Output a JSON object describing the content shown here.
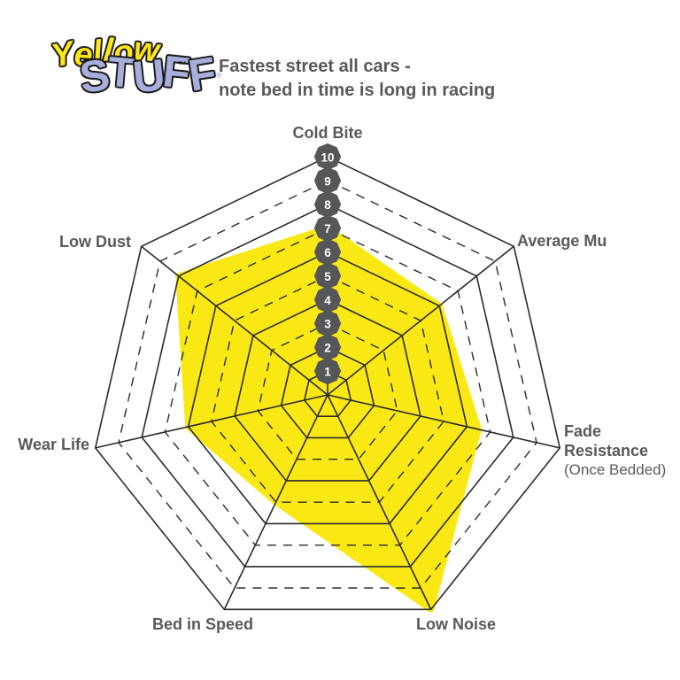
{
  "logo": {
    "word1": "Yellow",
    "word1_mark": "™",
    "word2": "STUFF",
    "word2_mark": "®",
    "word1_color": "#ffe617",
    "word2_color": "#a8aedc"
  },
  "header": {
    "line1": "Fastest street all cars -",
    "line2": "note bed in time is long in racing"
  },
  "chart_data": {
    "type": "radar",
    "categories": [
      "Cold Bite",
      "Average Mu",
      "Fade Resistance",
      "Low Noise",
      "Bed in Speed",
      "Wear Life",
      "Low Dust"
    ],
    "fade_sublabel": "(Once Bedded)",
    "values": [
      7,
      6,
      6.5,
      10,
      5,
      6,
      8
    ],
    "scale_min": 1,
    "scale_max": 10,
    "tick_labels": [
      "1",
      "2",
      "3",
      "4",
      "5",
      "6",
      "7",
      "8",
      "9",
      "10"
    ],
    "rings_dashed": [
      3,
      5,
      7,
      9
    ],
    "legend": "none",
    "grid_on": true,
    "fill_color": "#f9e814",
    "grid_color": "#2b2b2b",
    "badge_color": "#55565a",
    "badge_text_color": "#ffffff",
    "label_color": "#58595b"
  }
}
